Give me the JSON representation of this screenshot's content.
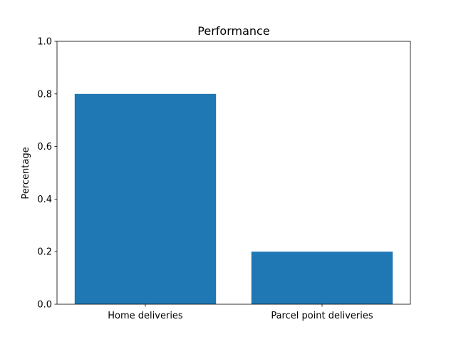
{
  "chart_data": {
    "type": "bar",
    "title": "Performance",
    "xlabel": "",
    "ylabel": "Percentage",
    "categories": [
      "Home deliveries",
      "Parcel point deliveries"
    ],
    "values": [
      0.8,
      0.2
    ],
    "ylim": [
      0,
      1.0
    ],
    "yticks": [
      "0.0",
      "0.2",
      "0.4",
      "0.6",
      "0.8",
      "1.0"
    ],
    "grid": false,
    "bar_color": "#1f77b4"
  }
}
